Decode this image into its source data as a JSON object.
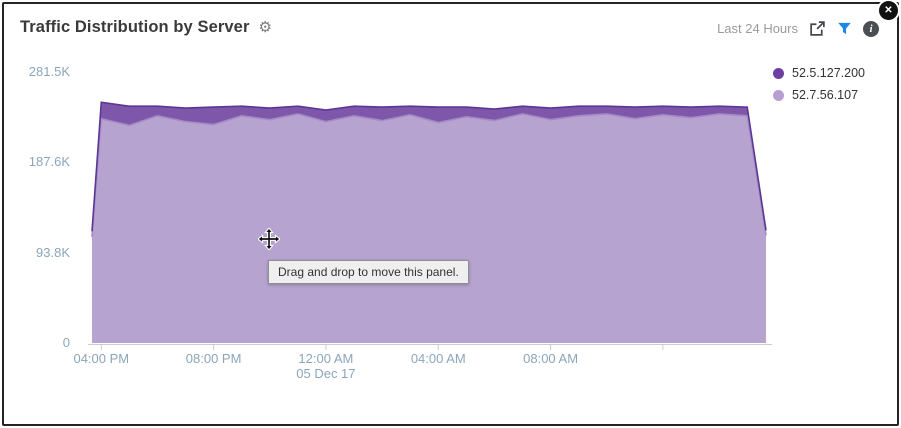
{
  "panel": {
    "title": "Traffic Distribution by Server",
    "time_range": "Last 24 Hours",
    "drag_tooltip": "Drag and drop to move this panel."
  },
  "icons": {
    "gear": "⚙",
    "close": "✕",
    "info": "i"
  },
  "legend": {
    "items": [
      {
        "label": "52.5.127.200",
        "color": "#6d3fa5"
      },
      {
        "label": "52.7.56.107",
        "color": "#b79fd3"
      }
    ]
  },
  "chart_data": {
    "type": "area",
    "stacked": true,
    "title": "Traffic Distribution by Server",
    "xlabel": "",
    "ylabel": "",
    "legend_position": "top-right",
    "grid": false,
    "x_hours": [
      15.67,
      16,
      17,
      18,
      19,
      20,
      21,
      22,
      23,
      24,
      25,
      26,
      27,
      28,
      29,
      30,
      31,
      32,
      33,
      34,
      35,
      36,
      37,
      38,
      39,
      39.67
    ],
    "series": [
      {
        "name": "52.5.127.200",
        "fill": "#7e57ab",
        "line": "#5b3694",
        "values": [
          6000,
          17000,
          20000,
          10000,
          14000,
          18000,
          10000,
          12000,
          8000,
          12000,
          10000,
          14000,
          9000,
          16000,
          10000,
          12000,
          8000,
          12000,
          10000,
          8000,
          12000,
          9000,
          11000,
          8000,
          9000,
          5000
        ]
      },
      {
        "name": "52.7.56.107",
        "fill": "#b7a3cf",
        "line": "#a58bc6",
        "values": [
          110000,
          233000,
          226000,
          236000,
          230000,
          227000,
          236000,
          232000,
          238000,
          230000,
          236000,
          231000,
          237000,
          229000,
          235000,
          231000,
          238000,
          232000,
          236000,
          238000,
          233000,
          237000,
          234000,
          238000,
          236000,
          112000
        ]
      }
    ],
    "ylim": [
      0,
      281500
    ],
    "yticks": [
      {
        "label": "0",
        "value": 0
      },
      {
        "label": "93.8K",
        "value": 93800
      },
      {
        "label": "187.6K",
        "value": 187600
      },
      {
        "label": "281.5K",
        "value": 281500
      }
    ],
    "xticks": [
      {
        "label": "04:00 PM",
        "value": 16
      },
      {
        "label": "08:00 PM",
        "value": 20
      },
      {
        "label": "12:00 AM",
        "sublabel": "05 Dec 17",
        "value": 24
      },
      {
        "label": "04:00 AM",
        "value": 28
      },
      {
        "label": "08:00 AM",
        "value": 32
      },
      {
        "label": "",
        "value": 36
      }
    ]
  }
}
